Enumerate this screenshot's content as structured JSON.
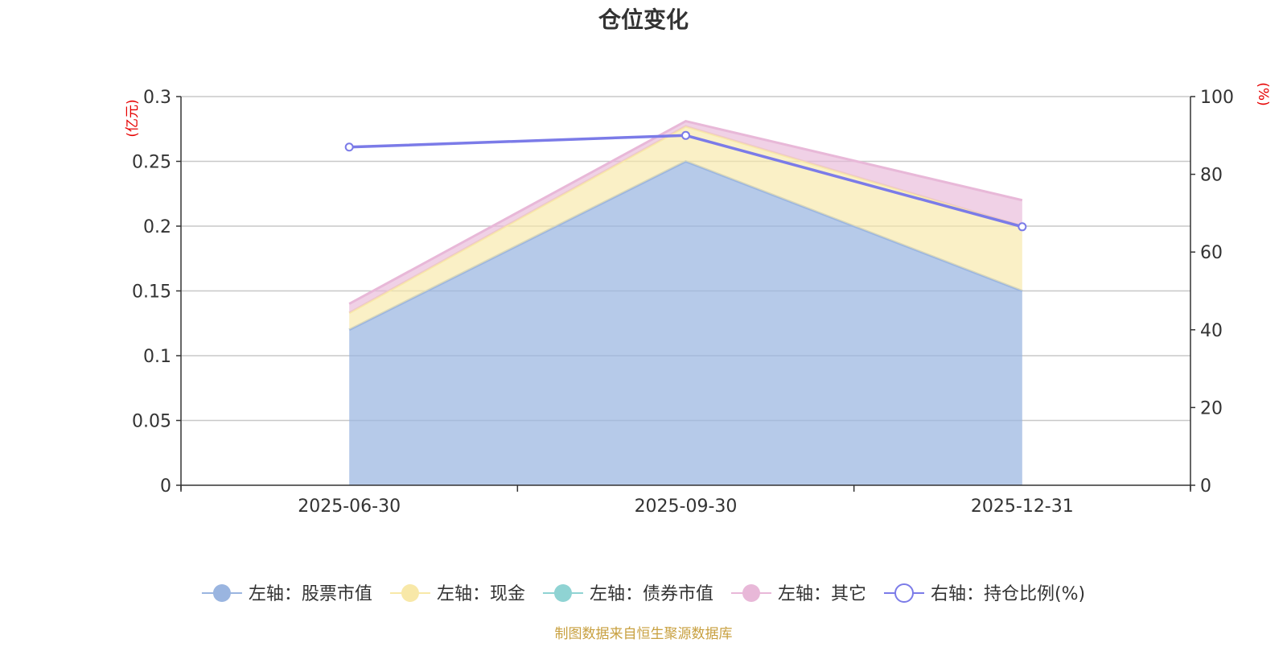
{
  "chart_data": {
    "type": "area",
    "title": "仓位变化",
    "left_unit": "(亿元)",
    "right_unit": "(%)",
    "categories": [
      "2025-06-30",
      "2025-09-30",
      "2025-12-31"
    ],
    "left_axis": {
      "min": 0,
      "max": 0.3,
      "ticks": [
        "0",
        "0.05",
        "0.1",
        "0.15",
        "0.2",
        "0.25",
        "0.3"
      ]
    },
    "right_axis": {
      "min": 0,
      "max": 100,
      "ticks": [
        "0",
        "20",
        "40",
        "60",
        "80",
        "100"
      ]
    },
    "stacked_series": [
      {
        "name": "左轴：股票市值",
        "color": "#9ab5e0",
        "values": [
          0.12,
          0.25,
          0.15
        ]
      },
      {
        "name": "左轴：现金",
        "color": "#f8e8a8",
        "values": [
          0.013,
          0.027,
          0.05
        ]
      },
      {
        "name": "左轴：债券市值",
        "color": "#8fd3d3",
        "values": [
          0.0,
          0.0,
          0.0
        ]
      },
      {
        "name": "左轴：其它",
        "color": "#e8b8d8",
        "values": [
          0.007,
          0.004,
          0.02
        ]
      }
    ],
    "line_series": {
      "name": "右轴：持仓比例(%)",
      "color": "#7b7be8",
      "values": [
        87,
        90,
        66.5
      ]
    },
    "grid": true,
    "legend_position": "bottom"
  },
  "source_text": "制图数据来自恒生聚源数据库"
}
